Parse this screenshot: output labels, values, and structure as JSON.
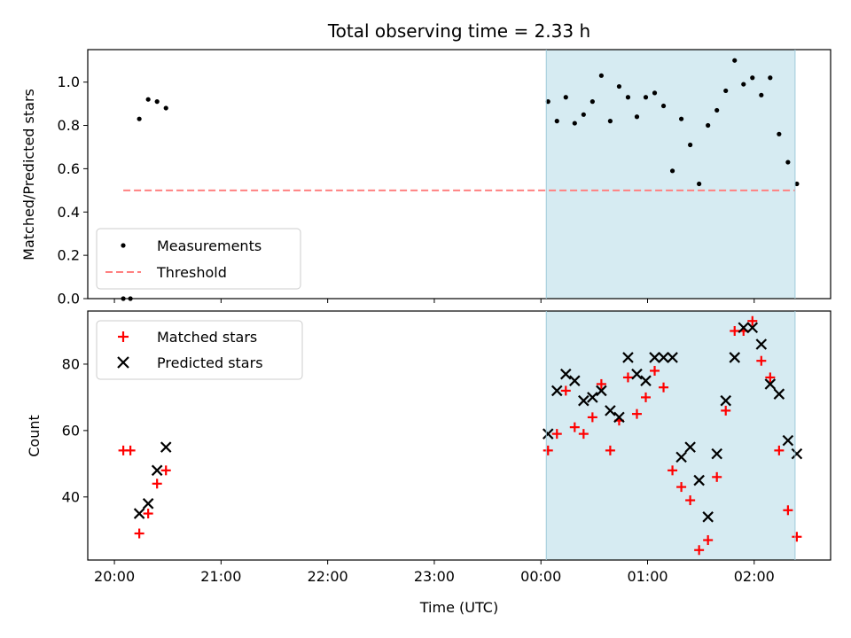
{
  "chart_data": [
    {
      "type": "scatter",
      "title": "Total observing time = 2.33 h",
      "ylabel": "Matched/Predicted stars",
      "xlabel": "",
      "ylim": [
        0,
        1.15
      ],
      "yticks": [
        0.0,
        0.2,
        0.4,
        0.6,
        0.8,
        1.0
      ],
      "ytick_labels": [
        "0.0",
        "0.2",
        "0.4",
        "0.6",
        "0.8",
        "1.0"
      ],
      "grid": false,
      "legend_position": "lower-left",
      "shaded_region": {
        "x": [
          "00:03",
          "02:23"
        ],
        "color": "#add8e6"
      },
      "series": [
        {
          "name": "Measurements",
          "marker": "dot",
          "color": "#000000",
          "x": [
            "20:05",
            "20:09",
            "20:14",
            "20:19",
            "20:24",
            "20:29",
            "00:04",
            "00:09",
            "00:14",
            "00:19",
            "00:24",
            "00:29",
            "00:34",
            "00:39",
            "00:44",
            "00:49",
            "00:54",
            "00:59",
            "01:04",
            "01:09",
            "01:14",
            "01:19",
            "01:24",
            "01:29",
            "01:34",
            "01:39",
            "01:44",
            "01:49",
            "01:54",
            "01:59",
            "02:04",
            "02:09",
            "02:14",
            "02:19",
            "02:24"
          ],
          "y": [
            0.0,
            0.0,
            0.83,
            0.92,
            0.91,
            0.88,
            0.91,
            0.82,
            0.93,
            0.81,
            0.85,
            0.91,
            1.03,
            0.82,
            0.98,
            0.93,
            0.84,
            0.93,
            0.95,
            0.89,
            0.59,
            0.83,
            0.71,
            0.53,
            0.8,
            0.87,
            0.96,
            1.1,
            0.99,
            1.02,
            0.94,
            1.02,
            0.76,
            0.63,
            0.53
          ]
        },
        {
          "name": "Threshold",
          "marker": "dashed-line",
          "color": "#ff8080",
          "x": [
            "20:05",
            "02:23"
          ],
          "y": [
            0.5,
            0.5
          ]
        }
      ]
    },
    {
      "type": "scatter",
      "title": "",
      "xlabel": "Time (UTC)",
      "ylabel": "Count",
      "ylim": [
        21,
        96
      ],
      "yticks": [
        40,
        60,
        80
      ],
      "ytick_labels": [
        "40",
        "60",
        "80"
      ],
      "xticks": [
        "20:00",
        "21:00",
        "22:00",
        "23:00",
        "00:00",
        "01:00",
        "02:00"
      ],
      "xlim": [
        "19:45",
        "02:43"
      ],
      "grid": false,
      "legend_position": "upper-left",
      "shaded_region": {
        "x": [
          "00:03",
          "02:23"
        ],
        "color": "#add8e6"
      },
      "series": [
        {
          "name": "Matched stars",
          "marker": "plus",
          "color": "#ff0000",
          "x": [
            "20:05",
            "20:09",
            "20:14",
            "20:19",
            "20:24",
            "20:29",
            "00:04",
            "00:09",
            "00:14",
            "00:19",
            "00:24",
            "00:29",
            "00:34",
            "00:39",
            "00:44",
            "00:49",
            "00:54",
            "00:59",
            "01:04",
            "01:09",
            "01:14",
            "01:19",
            "01:24",
            "01:29",
            "01:34",
            "01:39",
            "01:44",
            "01:49",
            "01:54",
            "01:59",
            "02:04",
            "02:09",
            "02:14",
            "02:19",
            "02:24"
          ],
          "y": [
            54,
            54,
            29,
            35,
            44,
            48,
            54,
            59,
            72,
            61,
            59,
            64,
            74,
            54,
            63,
            76,
            65,
            70,
            78,
            73,
            48,
            43,
            39,
            24,
            27,
            46,
            66,
            90,
            90,
            93,
            81,
            76,
            54,
            36,
            28
          ]
        },
        {
          "name": "Predicted stars",
          "marker": "x",
          "color": "#000000",
          "x": [
            "20:14",
            "20:19",
            "20:24",
            "20:29",
            "00:04",
            "00:09",
            "00:14",
            "00:19",
            "00:24",
            "00:29",
            "00:34",
            "00:39",
            "00:44",
            "00:49",
            "00:54",
            "00:59",
            "01:04",
            "01:09",
            "01:14",
            "01:19",
            "01:24",
            "01:29",
            "01:34",
            "01:39",
            "01:44",
            "01:49",
            "01:54",
            "01:59",
            "02:04",
            "02:09",
            "02:14",
            "02:19",
            "02:24"
          ],
          "y": [
            35,
            38,
            48,
            55,
            59,
            72,
            77,
            75,
            69,
            70,
            72,
            66,
            64,
            82,
            77,
            75,
            82,
            82,
            82,
            52,
            55,
            45,
            34,
            53,
            69,
            82,
            91,
            91,
            86,
            74,
            71,
            57,
            53
          ]
        }
      ]
    }
  ]
}
